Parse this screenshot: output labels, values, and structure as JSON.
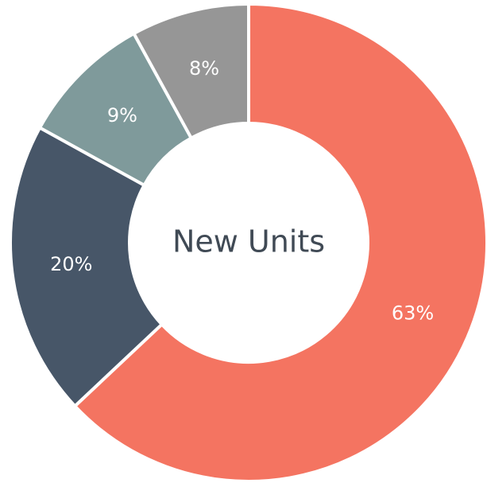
{
  "chart_data": {
    "type": "donut",
    "center_text": "New Units",
    "categories": [
      null,
      null,
      null,
      null
    ],
    "values": [
      63,
      20,
      9,
      8
    ],
    "value_labels": [
      "63%",
      "20%",
      "9%",
      "8%"
    ],
    "colors": [
      "#f47461",
      "#475668",
      "#7f9a9b",
      "#969696"
    ]
  }
}
